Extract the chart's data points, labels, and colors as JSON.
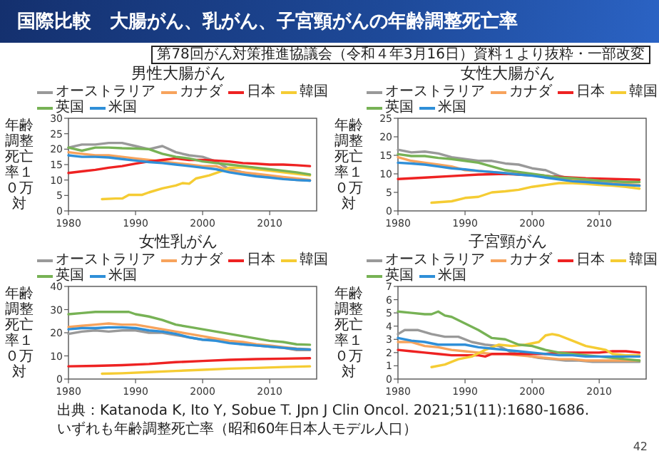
{
  "chart_data": [
    {
      "type": "line",
      "title": "男性大腸がん",
      "ylabel": "年齢調整死亡率１０万対",
      "xlim": [
        1980,
        2017
      ],
      "xticks": [
        1980,
        1990,
        2000,
        2010
      ],
      "ylim": [
        0,
        30
      ],
      "yticks": [
        0,
        5,
        10,
        15,
        20,
        25,
        30
      ],
      "legend": "top",
      "series": [
        {
          "name": "オーストラリア",
          "color": "#999999",
          "x": [
            1980,
            1982,
            1984,
            1986,
            1988,
            1990,
            1992,
            1994,
            1996,
            1998,
            2000,
            2002,
            2004,
            2006,
            2008,
            2010,
            2012,
            2014,
            2016
          ],
          "values": [
            20.5,
            21.5,
            21.5,
            22,
            22,
            21,
            20,
            21,
            19,
            18,
            17.5,
            16,
            13.5,
            12.5,
            11.5,
            11,
            10.5,
            10,
            9.8
          ]
        },
        {
          "name": "カナダ",
          "color": "#f7a35c",
          "x": [
            1980,
            1982,
            1984,
            1986,
            1988,
            1990,
            1992,
            1994,
            1996,
            1998,
            2000,
            2002,
            2004,
            2006,
            2008,
            2010,
            2012,
            2014,
            2016
          ],
          "values": [
            19,
            18.5,
            18,
            18,
            17.5,
            17,
            16.5,
            16,
            15.5,
            15,
            14.5,
            14.5,
            13,
            12.5,
            12,
            11.5,
            11,
            10.5,
            10
          ]
        },
        {
          "name": "日本",
          "color": "#ee2222",
          "x": [
            1980,
            1982,
            1984,
            1986,
            1988,
            1990,
            1992,
            1994,
            1996,
            1998,
            2000,
            2002,
            2004,
            2006,
            2008,
            2010,
            2012,
            2014,
            2016
          ],
          "values": [
            12.3,
            12.8,
            13.3,
            14,
            14.5,
            15.3,
            16,
            16.5,
            17,
            16.5,
            16.5,
            16.3,
            16,
            15.5,
            15.3,
            15,
            15,
            14.8,
            14.5
          ]
        },
        {
          "name": "韓国",
          "color": "#f5cc33",
          "x": [
            1985,
            1987,
            1988,
            1989,
            1991,
            1992,
            1994,
            1996,
            1997,
            1998,
            1999,
            2001,
            2003,
            2004,
            2006,
            2008,
            2010,
            2012,
            2014,
            2016
          ],
          "values": [
            3.8,
            4,
            4,
            5.2,
            5.2,
            6,
            7.3,
            8.2,
            9,
            8.8,
            10.5,
            11.5,
            13,
            14,
            14,
            13.5,
            13,
            12.5,
            12,
            11.5
          ]
        },
        {
          "name": "英国",
          "color": "#77b255",
          "x": [
            1980,
            1982,
            1984,
            1986,
            1988,
            1990,
            1992,
            1994,
            1996,
            1998,
            2000,
            2002,
            2004,
            2006,
            2008,
            2010,
            2012,
            2014,
            2016
          ],
          "values": [
            20.5,
            19.5,
            20.5,
            20.5,
            20.3,
            20.2,
            20,
            18.5,
            17.5,
            17,
            16,
            15.5,
            15,
            14.5,
            14,
            13.5,
            13,
            12.5,
            11.8
          ]
        },
        {
          "name": "米国",
          "color": "#2f8fd8",
          "x": [
            1980,
            1982,
            1984,
            1986,
            1988,
            1990,
            1992,
            1994,
            1996,
            1998,
            2000,
            2002,
            2004,
            2006,
            2008,
            2010,
            2012,
            2014,
            2016
          ],
          "values": [
            18,
            17.5,
            17.5,
            17.3,
            16.8,
            16.3,
            15.8,
            15.5,
            15,
            14.5,
            14,
            13.5,
            12.5,
            11.8,
            11.2,
            10.8,
            10.3,
            10,
            9.8
          ]
        }
      ]
    },
    {
      "type": "line",
      "title": "女性大腸がん",
      "ylabel": "年齢調整死亡率１０万対",
      "xlim": [
        1980,
        2017
      ],
      "xticks": [
        1980,
        1990,
        2000,
        2010
      ],
      "ylim": [
        0,
        25
      ],
      "yticks": [
        0,
        5,
        10,
        15,
        20,
        25
      ],
      "legend": "top",
      "series": [
        {
          "name": "オーストラリア",
          "color": "#999999",
          "x": [
            1980,
            1982,
            1984,
            1986,
            1988,
            1990,
            1992,
            1994,
            1996,
            1998,
            2000,
            2002,
            2004,
            2006,
            2008,
            2010,
            2012,
            2014,
            2016
          ],
          "values": [
            16.5,
            15.8,
            16,
            15.5,
            14.5,
            14,
            13.5,
            13.5,
            12.8,
            12.5,
            11.5,
            11,
            9.5,
            8.5,
            8,
            7.8,
            7.3,
            7,
            6.8
          ]
        },
        {
          "name": "カナダ",
          "color": "#f7a35c",
          "x": [
            1980,
            1982,
            1984,
            1986,
            1988,
            1990,
            1992,
            1994,
            1996,
            1998,
            2000,
            2002,
            2004,
            2006,
            2008,
            2010,
            2012,
            2014,
            2016
          ],
          "values": [
            14.5,
            13.5,
            13,
            12.5,
            12,
            11,
            10.8,
            10.5,
            10.2,
            10,
            9.8,
            9.5,
            9,
            8.5,
            8.5,
            8,
            7.5,
            7.2,
            7
          ]
        },
        {
          "name": "日本",
          "color": "#ee2222",
          "x": [
            1980,
            1984,
            1988,
            1992,
            1996,
            2000,
            2004,
            2008,
            2012,
            2016
          ],
          "values": [
            8.6,
            9,
            9.4,
            9.8,
            10,
            9.6,
            9.2,
            8.8,
            8.6,
            8.4
          ]
        },
        {
          "name": "韓国",
          "color": "#f5cc33",
          "x": [
            1985,
            1988,
            1990,
            1992,
            1994,
            1996,
            1998,
            2000,
            2002,
            2004,
            2006,
            2008,
            2010,
            2012,
            2014,
            2016
          ],
          "values": [
            2.2,
            2.6,
            3.5,
            3.8,
            5,
            5.3,
            5.7,
            6.5,
            7,
            7.5,
            7.5,
            7.3,
            7,
            6.8,
            6.5,
            6
          ]
        },
        {
          "name": "英国",
          "color": "#77b255",
          "x": [
            1980,
            1982,
            1984,
            1986,
            1988,
            1990,
            1992,
            1994,
            1996,
            1998,
            2000,
            2002,
            2004,
            2006,
            2008,
            2010,
            2012,
            2014,
            2016
          ],
          "values": [
            15.3,
            14.8,
            14.8,
            14.3,
            14,
            13.5,
            13,
            12,
            11,
            10.5,
            10,
            9.5,
            9,
            8.8,
            8.5,
            8.2,
            8,
            7.8,
            7.8
          ]
        },
        {
          "name": "米国",
          "color": "#2f8fd8",
          "x": [
            1980,
            1982,
            1984,
            1986,
            1988,
            1990,
            1992,
            1994,
            1996,
            1998,
            2000,
            2002,
            2004,
            2006,
            2008,
            2010,
            2012,
            2014,
            2016
          ],
          "values": [
            13,
            12.8,
            12.5,
            12,
            11.5,
            11.2,
            10.8,
            10.5,
            10.2,
            9.8,
            9.5,
            9,
            8.5,
            8,
            7.8,
            7.5,
            7.2,
            7,
            6.8
          ]
        }
      ]
    },
    {
      "type": "line",
      "title": "女性乳がん",
      "ylabel": "年齢調整死亡率１０万対",
      "xlim": [
        1980,
        2017
      ],
      "xticks": [
        1980,
        1990,
        2000,
        2010
      ],
      "ylim": [
        0,
        40
      ],
      "yticks": [
        0,
        10,
        20,
        30,
        40
      ],
      "legend": "top",
      "series": [
        {
          "name": "オーストラリア",
          "color": "#999999",
          "x": [
            1980,
            1982,
            1984,
            1986,
            1988,
            1990,
            1992,
            1994,
            1996,
            1998,
            2000,
            2002,
            2004,
            2006,
            2008,
            2010,
            2012,
            2014,
            2016
          ],
          "values": [
            19.5,
            20.5,
            21,
            20.5,
            21,
            21,
            20,
            20,
            19,
            18,
            17,
            17,
            16,
            15,
            14.5,
            14,
            13.5,
            12.5,
            12.5
          ]
        },
        {
          "name": "カナダ",
          "color": "#f7a35c",
          "x": [
            1980,
            1982,
            1984,
            1986,
            1988,
            1990,
            1992,
            1994,
            1996,
            1998,
            2000,
            2002,
            2004,
            2006,
            2008,
            2010,
            2012,
            2014,
            2016
          ],
          "values": [
            22.5,
            23,
            23.5,
            24,
            23.5,
            23.5,
            22.5,
            21.5,
            20.5,
            19.5,
            18.5,
            17.5,
            16.5,
            16,
            15,
            14.5,
            13.8,
            13.2,
            12.8
          ]
        },
        {
          "name": "日本",
          "color": "#ee2222",
          "x": [
            1980,
            1984,
            1988,
            1992,
            1996,
            2000,
            2004,
            2008,
            2012,
            2016
          ],
          "values": [
            5.5,
            5.7,
            6,
            6.5,
            7.3,
            7.8,
            8.3,
            8.6,
            8.8,
            9
          ]
        },
        {
          "name": "韓国",
          "color": "#f5cc33",
          "x": [
            1985,
            1988,
            1992,
            1996,
            2000,
            2004,
            2008,
            2012,
            2016
          ],
          "values": [
            2.3,
            2.5,
            3,
            3.5,
            4,
            4.5,
            4.8,
            5.2,
            5.5
          ]
        },
        {
          "name": "英国",
          "color": "#77b255",
          "x": [
            1980,
            1982,
            1984,
            1986,
            1988,
            1989,
            1990,
            1992,
            1994,
            1996,
            1998,
            2000,
            2002,
            2004,
            2006,
            2008,
            2010,
            2012,
            2014,
            2016
          ],
          "values": [
            28,
            28.5,
            29,
            29,
            29,
            29,
            28,
            27,
            25.5,
            23.5,
            22.5,
            21.5,
            20.5,
            19.5,
            18.5,
            17.5,
            16.5,
            16,
            15,
            14.8
          ]
        },
        {
          "name": "米国",
          "color": "#2f8fd8",
          "x": [
            1980,
            1982,
            1984,
            1986,
            1988,
            1990,
            1992,
            1994,
            1996,
            1998,
            2000,
            2002,
            2004,
            2006,
            2008,
            2010,
            2012,
            2014,
            2016
          ],
          "values": [
            21.5,
            22,
            22,
            22.3,
            22.3,
            22,
            21,
            20.5,
            19.5,
            18,
            17,
            16.5,
            15.5,
            15,
            14.5,
            14,
            13.5,
            13,
            12.8
          ]
        }
      ]
    },
    {
      "type": "line",
      "title": "子宮頸がん",
      "ylabel": "年齢調整死亡率１０万対",
      "xlim": [
        1980,
        2017
      ],
      "xticks": [
        1980,
        1990,
        2000,
        2010
      ],
      "ylim": [
        0,
        7
      ],
      "yticks": [
        0,
        1,
        2,
        3,
        4,
        5,
        6,
        7
      ],
      "legend": "top",
      "series": [
        {
          "name": "オーストラリア",
          "color": "#999999",
          "x": [
            1980,
            1981,
            1983,
            1985,
            1987,
            1989,
            1991,
            1993,
            1995,
            1997,
            1999,
            2001,
            2003,
            2005,
            2007,
            2009,
            2011,
            2013,
            2016
          ],
          "values": [
            3.4,
            3.7,
            3.7,
            3.4,
            3.2,
            3.2,
            2.8,
            2.6,
            2.5,
            2,
            1.8,
            1.6,
            1.5,
            1.4,
            1.4,
            1.3,
            1.3,
            1.3,
            1.3
          ]
        },
        {
          "name": "カナダ",
          "color": "#f7a35c",
          "x": [
            1980,
            1982,
            1984,
            1986,
            1988,
            1990,
            1992,
            1994,
            1996,
            1998,
            2000,
            2002,
            2004,
            2006,
            2008,
            2010,
            2012,
            2014,
            2016
          ],
          "values": [
            2.8,
            2.8,
            2.5,
            2.4,
            2.2,
            2.1,
            2,
            1.9,
            1.9,
            1.8,
            1.7,
            1.6,
            1.5,
            1.5,
            1.4,
            1.4,
            1.4,
            1.4,
            1.4
          ]
        },
        {
          "name": "日本",
          "color": "#ee2222",
          "x": [
            1980,
            1982,
            1984,
            1986,
            1988,
            1990,
            1992,
            1993,
            1994,
            1996,
            1998,
            2000,
            2002,
            2004,
            2006,
            2008,
            2010,
            2012,
            2014,
            2016
          ],
          "values": [
            2.2,
            2.1,
            2,
            1.9,
            1.8,
            1.8,
            1.8,
            1.7,
            1.9,
            1.9,
            1.9,
            1.9,
            1.9,
            2,
            2,
            2,
            2,
            2.1,
            2.1,
            2
          ]
        },
        {
          "name": "韓国",
          "color": "#f5cc33",
          "x": [
            1985,
            1987,
            1989,
            1991,
            1993,
            1995,
            1997,
            1999,
            2001,
            2002,
            2003,
            2004,
            2006,
            2008,
            2010,
            2011,
            2012,
            2014,
            2016
          ],
          "values": [
            0.9,
            1.1,
            1.5,
            1.7,
            2.2,
            2.6,
            2.5,
            2.6,
            2.8,
            3.3,
            3.4,
            3.3,
            2.9,
            2.5,
            2.3,
            2.2,
            1.9,
            1.8,
            1.8
          ]
        },
        {
          "name": "英国",
          "color": "#77b255",
          "x": [
            1980,
            1982,
            1984,
            1985,
            1986,
            1987,
            1988,
            1990,
            1992,
            1994,
            1996,
            1998,
            2000,
            2002,
            2004,
            2006,
            2008,
            2010,
            2012,
            2014,
            2016
          ],
          "values": [
            5.1,
            5,
            4.9,
            4.9,
            5.1,
            4.8,
            4.7,
            4.2,
            3.7,
            3.1,
            3,
            2.6,
            2.5,
            2.2,
            2,
            1.9,
            1.8,
            1.7,
            1.6,
            1.5,
            1.4
          ]
        },
        {
          "name": "米国",
          "color": "#2f8fd8",
          "x": [
            1980,
            1982,
            1984,
            1986,
            1988,
            1990,
            1992,
            1994,
            1996,
            1998,
            2000,
            2002,
            2004,
            2006,
            2008,
            2010,
            2012,
            2014,
            2016
          ],
          "values": [
            3.1,
            2.9,
            2.8,
            2.6,
            2.6,
            2.6,
            2.4,
            2.3,
            2.2,
            2.1,
            2,
            1.9,
            1.8,
            1.8,
            1.7,
            1.7,
            1.7,
            1.7,
            1.7
          ]
        }
      ]
    },
    {
      "type": "other",
      "title": "国際比較　大腸がん、乳がん、子宮頸がんの年齢調整死亡率",
      "annotations": [
        "第78回がん対策推進協議会（令和４年3月16日）資料１より抜粋・一部改変",
        "出典：Katanoda K, Ito Y, Sobue T. Jpn J Clin Oncol. 2021;51(11):1680-1686.",
        "いずれも年齢調整死亡率（昭和60年日本人モデル人口）",
        "42"
      ]
    }
  ]
}
